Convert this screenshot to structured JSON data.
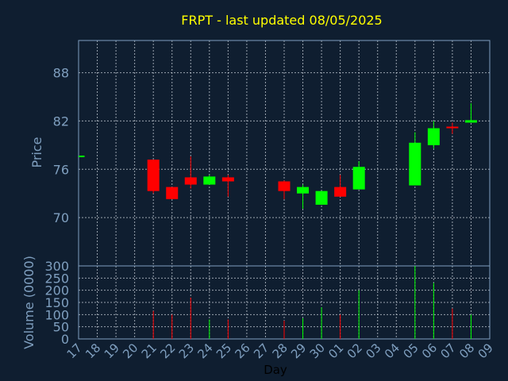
{
  "chart_data": {
    "type": "candlestick",
    "title": "FRPT - last updated 08/05/2025",
    "ylabel": "Price",
    "volume_ylabel": "Volume (0000)",
    "xlabel": "Day",
    "x_tick_labels": [
      "17",
      "18",
      "19",
      "20",
      "21",
      "22",
      "23",
      "24",
      "25",
      "26",
      "27",
      "28",
      "29",
      "30",
      "01",
      "02",
      "03",
      "04",
      "05",
      "06",
      "07",
      "08",
      "09"
    ],
    "price_ylim": [
      64,
      92
    ],
    "price_yticks": [
      70,
      76,
      82,
      88
    ],
    "volume_ylim": [
      0,
      300
    ],
    "volume_yticks": [
      0,
      50,
      100,
      150,
      200,
      250,
      300
    ],
    "grid": true,
    "colors": {
      "up": "#00ff00",
      "down": "#ff0000",
      "title": "#ffff00",
      "axis_text": "#7f9fbf",
      "background": "#0f1e30"
    },
    "candles": [
      {
        "day": "17",
        "open": 77.6,
        "high": 77.6,
        "low": 77.6,
        "close": 77.6,
        "volume": 0
      },
      {
        "day": "21",
        "open": 77.2,
        "high": 77.2,
        "low": 73.0,
        "close": 73.3,
        "volume": 115
      },
      {
        "day": "22",
        "open": 73.8,
        "high": 73.8,
        "low": 72.3,
        "close": 72.3,
        "volume": 100
      },
      {
        "day": "23",
        "open": 75.0,
        "high": 77.6,
        "low": 73.6,
        "close": 74.1,
        "volume": 170
      },
      {
        "day": "24",
        "open": 74.1,
        "high": 75.3,
        "low": 74.1,
        "close": 75.1,
        "volume": 80
      },
      {
        "day": "25",
        "open": 75.0,
        "high": 75.3,
        "low": 72.6,
        "close": 74.5,
        "volume": 80
      },
      {
        "day": "28",
        "open": 74.5,
        "high": 74.6,
        "low": 72.3,
        "close": 73.3,
        "volume": 75
      },
      {
        "day": "29",
        "open": 73.0,
        "high": 74.1,
        "low": 71.1,
        "close": 73.8,
        "volume": 85
      },
      {
        "day": "30",
        "open": 71.6,
        "high": 73.3,
        "low": 71.6,
        "close": 73.3,
        "volume": 130
      },
      {
        "day": "01",
        "open": 73.8,
        "high": 75.3,
        "low": 72.6,
        "close": 72.6,
        "volume": 100
      },
      {
        "day": "02",
        "open": 73.5,
        "high": 77.0,
        "low": 73.5,
        "close": 76.3,
        "volume": 200
      },
      {
        "day": "05",
        "open": 74.0,
        "high": 80.6,
        "low": 74.0,
        "close": 79.3,
        "volume": 300
      },
      {
        "day": "06",
        "open": 79.0,
        "high": 82.0,
        "low": 78.6,
        "close": 81.1,
        "volume": 230
      },
      {
        "day": "07",
        "open": 81.3,
        "high": 81.8,
        "low": 80.4,
        "close": 81.1,
        "volume": 125
      },
      {
        "day": "08",
        "open": 81.8,
        "high": 84.2,
        "low": 81.8,
        "close": 82.1,
        "volume": 100
      }
    ]
  }
}
